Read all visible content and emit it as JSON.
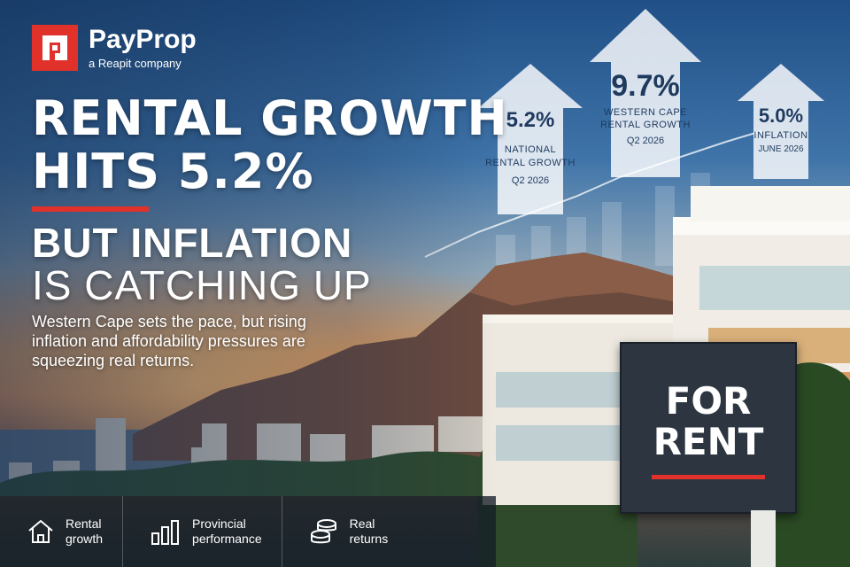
{
  "brand": {
    "name": "PayProp",
    "tagline": "a Reapit company",
    "accent_color": "#e0312b"
  },
  "headline": {
    "line1": "RENTAL GROWTH",
    "line2": "HITS 5.2%",
    "sub_line1": "BUT INFLATION",
    "sub_line2": "IS CATCHING UP"
  },
  "body": "Western Cape sets the pace, but rising inflation and affordability pressures are squeezing real returns.",
  "stats": [
    {
      "value": "5.2%",
      "label_line1": "NATIONAL",
      "label_line2": "RENTAL GROWTH",
      "period": "Q2 2026"
    },
    {
      "value": "9.7%",
      "label_line1": "WESTERN CAPE",
      "label_line2": "RENTAL GROWTH",
      "period": "Q2 2026"
    },
    {
      "value": "5.0%",
      "label_line1": "INFLATION",
      "label_line2": "",
      "period": "JUNE 2026"
    }
  ],
  "sign": {
    "line1": "FOR",
    "line2": "RENT"
  },
  "features": [
    {
      "icon": "house-icon",
      "line1": "Rental",
      "line2": "growth"
    },
    {
      "icon": "bar-chart-icon",
      "line1": "Provincial",
      "line2": "performance"
    },
    {
      "icon": "coins-icon",
      "line1": "Real",
      "line2": "returns"
    }
  ]
}
